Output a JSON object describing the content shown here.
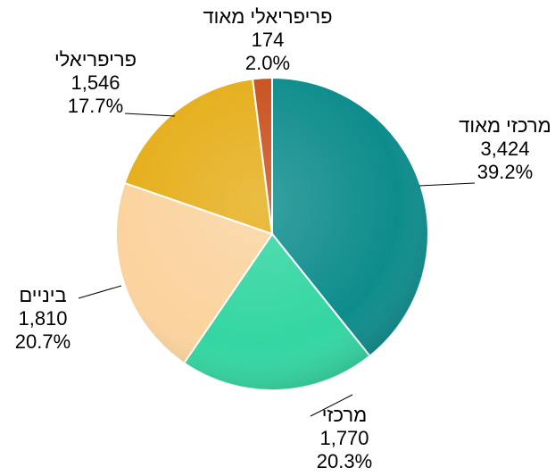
{
  "chart_data": {
    "type": "pie",
    "title": "",
    "start_angle_deg": 0,
    "direction": "clockwise",
    "slices": [
      {
        "label": "מרכזי מאוד",
        "value": 3424,
        "value_text": "3,424",
        "percent_text": "39.2%",
        "color": "#0E8C8C"
      },
      {
        "label": "מרכזי",
        "value": 1770,
        "value_text": "1,770",
        "percent_text": "20.3%",
        "color": "#33D6A2"
      },
      {
        "label": "ביניים",
        "value": 1810,
        "value_text": "1,810",
        "percent_text": "20.7%",
        "color": "#FBD39E"
      },
      {
        "label": "פריפריאלי",
        "value": 1546,
        "value_text": "1,546",
        "percent_text": "17.7%",
        "color": "#E5AE1A"
      },
      {
        "label": "פריפריאלי מאוד",
        "value": 174,
        "value_text": "174",
        "percent_text": "2.0%",
        "color": "#C9501E"
      }
    ],
    "legend": "none"
  }
}
